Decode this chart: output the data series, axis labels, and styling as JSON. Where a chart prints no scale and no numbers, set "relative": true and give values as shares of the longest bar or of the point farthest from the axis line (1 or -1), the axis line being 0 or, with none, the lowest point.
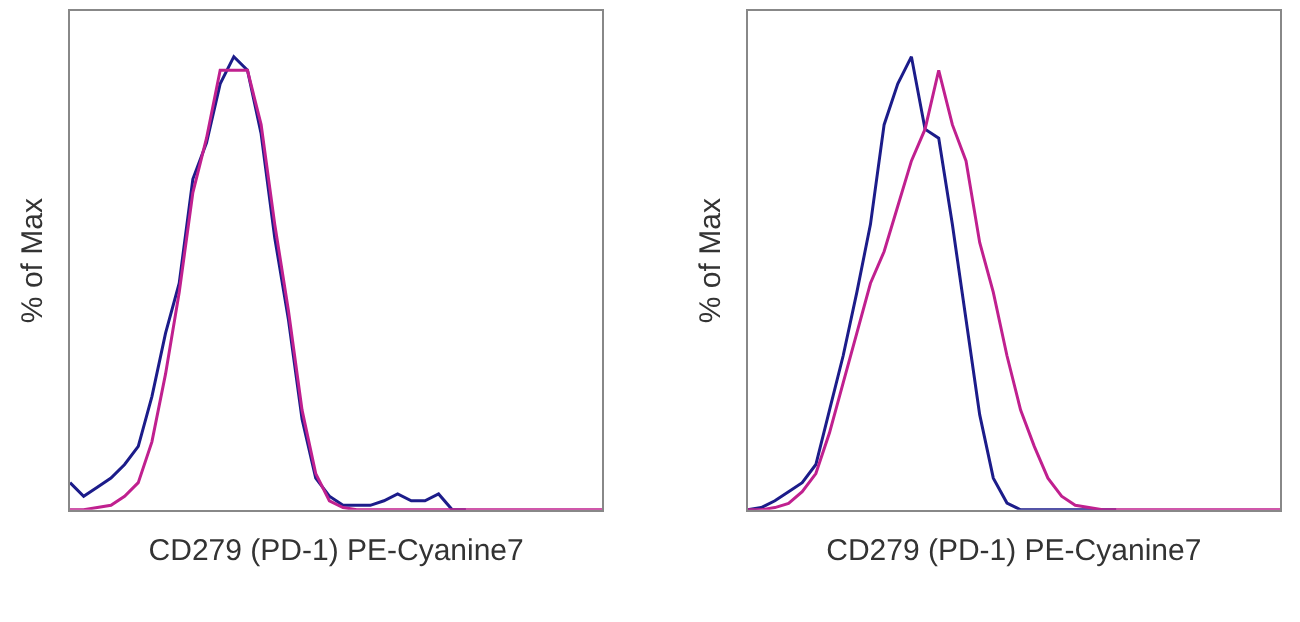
{
  "chart_data": [
    {
      "type": "line",
      "xlabel": "CD279 (PD-1) PE-Cyanine7",
      "ylabel": "% of Max",
      "relative": true,
      "tick_labels": false,
      "categories": [
        null,
        null,
        null,
        null,
        null,
        null,
        null,
        null,
        null,
        null,
        null,
        null,
        null,
        null,
        null,
        null,
        null,
        null,
        null,
        null,
        null,
        null,
        null,
        null,
        null,
        null,
        null,
        null,
        null,
        null,
        null,
        null,
        null,
        null,
        null,
        null,
        null,
        null,
        null,
        null
      ],
      "series": [
        {
          "color": "#1c1c8a",
          "values": [
            0.06,
            0.03,
            0.05,
            0.07,
            0.1,
            0.14,
            0.25,
            0.39,
            0.5,
            0.73,
            0.81,
            0.94,
            1.0,
            0.97,
            0.83,
            0.6,
            0.42,
            0.2,
            0.07,
            0.03,
            0.01,
            0.01,
            0.01,
            0.02,
            0.035,
            0.02,
            0.02,
            0.035,
            0.0,
            0,
            null,
            null,
            null,
            null,
            null,
            null,
            null,
            null,
            null,
            null
          ]
        },
        {
          "color": "#c0208f",
          "values": [
            0,
            0,
            0.005,
            0.01,
            0.03,
            0.06,
            0.15,
            0.3,
            0.48,
            0.7,
            0.82,
            0.97,
            0.97,
            0.97,
            0.85,
            0.63,
            0.44,
            0.22,
            0.08,
            0.02,
            0.005,
            0,
            0,
            0,
            0,
            0,
            0,
            0,
            0,
            0,
            0,
            0,
            0,
            0,
            0,
            0,
            0,
            0,
            0,
            0
          ]
        }
      ]
    },
    {
      "type": "line",
      "xlabel": "CD279 (PD-1) PE-Cyanine7",
      "ylabel": "% of Max",
      "relative": true,
      "tick_labels": false,
      "categories": [
        null,
        null,
        null,
        null,
        null,
        null,
        null,
        null,
        null,
        null,
        null,
        null,
        null,
        null,
        null,
        null,
        null,
        null,
        null,
        null,
        null,
        null,
        null,
        null,
        null,
        null,
        null,
        null,
        null,
        null,
        null,
        null,
        null,
        null,
        null,
        null,
        null,
        null,
        null,
        null
      ],
      "series": [
        {
          "color": "#1c1c8a",
          "values": [
            0,
            0.005,
            0.02,
            0.04,
            0.06,
            0.1,
            0.22,
            0.34,
            0.48,
            0.63,
            0.85,
            0.94,
            1.0,
            0.84,
            0.82,
            0.63,
            0.42,
            0.21,
            0.07,
            0.015,
            0,
            0,
            0,
            0,
            0,
            0,
            0,
            0,
            null,
            null,
            null,
            null,
            null,
            null,
            null,
            null,
            null,
            null,
            null,
            null
          ]
        },
        {
          "color": "#c0208f",
          "values": [
            0,
            0,
            0.005,
            0.014,
            0.04,
            0.08,
            0.17,
            0.28,
            0.39,
            0.5,
            0.57,
            0.67,
            0.77,
            0.84,
            0.97,
            0.85,
            0.77,
            0.59,
            0.48,
            0.34,
            0.22,
            0.14,
            0.07,
            0.03,
            0.01,
            0.005,
            0,
            0,
            0,
            0,
            0,
            0,
            0,
            0,
            0,
            0,
            0,
            0,
            0,
            0
          ]
        }
      ]
    }
  ]
}
